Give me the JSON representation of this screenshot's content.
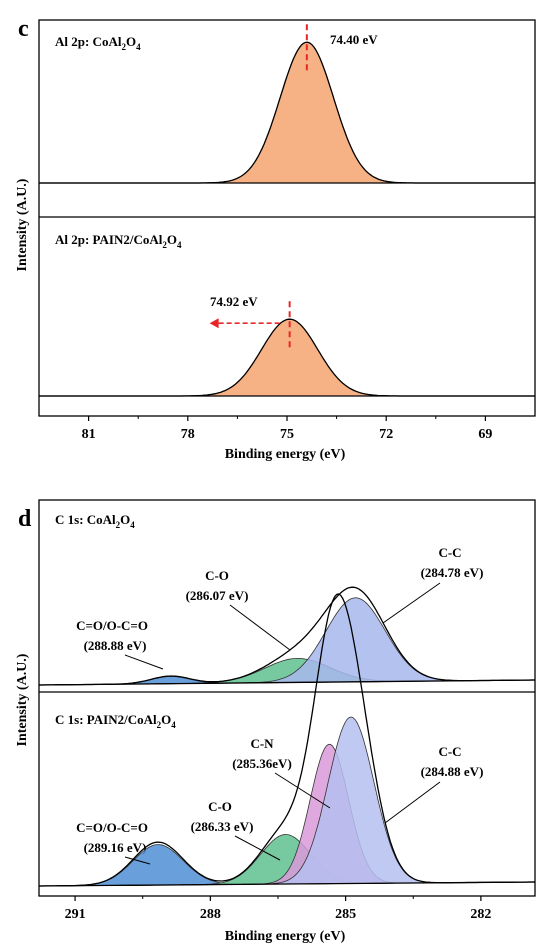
{
  "panels": [
    {
      "letter": "c",
      "xlabel": "Binding energy (eV)",
      "ylabel": "Intensity (A.U.)",
      "xlim": [
        82.5,
        67.5
      ],
      "ticks": [
        "81",
        "78",
        "75",
        "72",
        "69"
      ],
      "tick_values": [
        81,
        78,
        75,
        72,
        69
      ]
    },
    {
      "letter": "d",
      "xlabel": "Binding energy (eV)",
      "ylabel": "Intensity (A.U.)",
      "xlim": [
        291.8,
        280.8
      ],
      "ticks": [
        "291",
        "288",
        "285",
        "282"
      ],
      "tick_values": [
        291,
        288,
        285,
        282
      ]
    }
  ],
  "chart_data": [
    {
      "type": "area",
      "panel": "c",
      "title": "Al 2p: CoAl2O4",
      "colors": {
        "fill": "#f4a46e",
        "marker": "#e8262a"
      },
      "peaks": [
        {
          "label": "74.40 eV",
          "center": 74.4,
          "height": 0.88,
          "fwhm": 1.9,
          "fill": "#f4a46e"
        }
      ]
    },
    {
      "type": "area",
      "panel": "c",
      "title": "Al 2p: PAIN2/CoAl2O4",
      "colors": {
        "fill": "#f4a46e",
        "marker": "#e8262a",
        "arrow": "#e8262a"
      },
      "peaks": [
        {
          "label": "74.92 eV",
          "center": 74.92,
          "height": 0.48,
          "fwhm": 2.0,
          "fill": "#f4a46e"
        }
      ]
    },
    {
      "type": "area",
      "panel": "d",
      "title": "C 1s: CoAl2O4",
      "peaks": [
        {
          "label": "C=O/O-C=O",
          "energy": "(288.88 eV)",
          "center": 288.88,
          "height": 0.06,
          "fwhm": 1.0,
          "fill": "#4f8fd6"
        },
        {
          "label": "C-O",
          "energy": "(286.07 eV)",
          "center": 286.07,
          "height": 0.2,
          "fwhm": 1.7,
          "fill": "#5fc08f"
        },
        {
          "label": "C-C",
          "energy": "(284.78 eV)",
          "center": 284.78,
          "height": 0.7,
          "fwhm": 1.55,
          "fill": "#a7b7ec"
        }
      ]
    },
    {
      "type": "area",
      "panel": "d",
      "title": "C 1s: PAIN2/CoAl2O4",
      "peaks": [
        {
          "label": "C=O/O-C=O",
          "energy": "(289.16 eV)",
          "center": 289.16,
          "height": 0.18,
          "fwhm": 1.3,
          "fill": "#4f8fd6"
        },
        {
          "label": "C-O",
          "energy": "(286.33 eV)",
          "center": 286.33,
          "height": 0.22,
          "fwhm": 1.3,
          "fill": "#5fc08f"
        },
        {
          "label": "C-N",
          "energy": "(285.36eV)",
          "center": 285.36,
          "height": 0.62,
          "fwhm": 1.0,
          "fill": "#d99ad9"
        },
        {
          "label": "C-C",
          "energy": "(284.88 eV)",
          "center": 284.88,
          "height": 0.74,
          "fwhm": 1.2,
          "fill": "#b5bff0"
        }
      ]
    }
  ]
}
